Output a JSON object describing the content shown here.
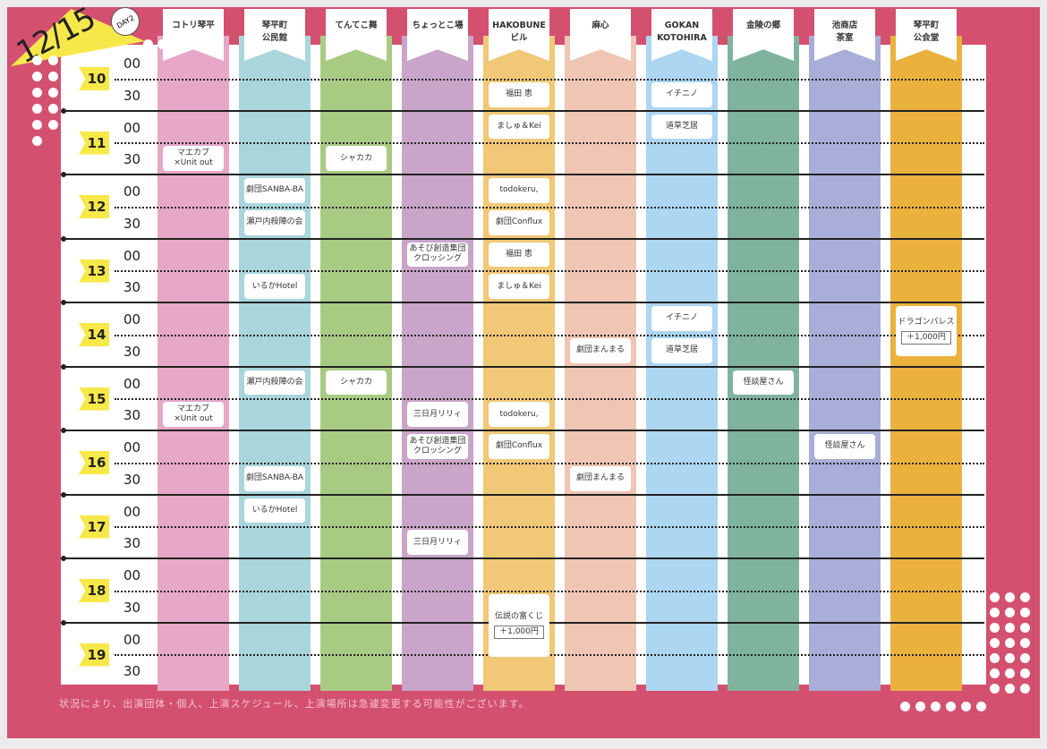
{
  "header": {
    "date": "12/15",
    "day": "DAY2"
  },
  "venues": [
    {
      "name": "コトリ琴平",
      "color": "#e6a8c6"
    },
    {
      "name": "琴平町\n公民館",
      "color": "#a9d5dc"
    },
    {
      "name": "てんてこ舞",
      "color": "#a8cb84"
    },
    {
      "name": "ちょっとこ場",
      "color": "#c9a5c9"
    },
    {
      "name": "HAKOBUNE\nビル",
      "color": "#f0c877"
    },
    {
      "name": "麻心",
      "color": "#efc5b3"
    },
    {
      "name": "GOKAN\nKOTOHIRA",
      "color": "#acd6f1"
    },
    {
      "name": "金陵の郷",
      "color": "#7fb39d"
    },
    {
      "name": "池商店\n茶室",
      "color": "#a8aed7"
    },
    {
      "name": "琴平町\n公会堂",
      "color": "#ebb13d"
    }
  ],
  "hours": [
    "10",
    "11",
    "12",
    "13",
    "14",
    "15",
    "16",
    "17",
    "18",
    "19"
  ],
  "minutes": [
    "00",
    "30"
  ],
  "events": [
    {
      "venue": 0,
      "time": "11:30",
      "title": "マエカブ\n×Unit out"
    },
    {
      "venue": 0,
      "time": "15:30",
      "title": "マエカブ\n×Unit out"
    },
    {
      "venue": 1,
      "time": "12:00",
      "title": "劇団SANBA-BA"
    },
    {
      "venue": 1,
      "time": "12:30",
      "title": "瀬戸内殺陣の会"
    },
    {
      "venue": 1,
      "time": "13:30",
      "title": "いるかHotel"
    },
    {
      "venue": 1,
      "time": "15:00",
      "title": "瀬戸内殺陣の会"
    },
    {
      "venue": 1,
      "time": "16:30",
      "title": "劇団SANBA-BA"
    },
    {
      "venue": 1,
      "time": "17:00",
      "title": "いるかHotel"
    },
    {
      "venue": 2,
      "time": "11:30",
      "title": "シャカカ"
    },
    {
      "venue": 2,
      "time": "15:00",
      "title": "シャカカ"
    },
    {
      "venue": 3,
      "time": "13:00",
      "title": "あそび創造集団\nクロッシング"
    },
    {
      "venue": 3,
      "time": "15:30",
      "title": "三日月リリィ"
    },
    {
      "venue": 3,
      "time": "16:00",
      "title": "あそび創造集団\nクロッシング"
    },
    {
      "venue": 3,
      "time": "17:30",
      "title": "三日月リリィ"
    },
    {
      "venue": 4,
      "time": "10:30",
      "title": "福田 恵"
    },
    {
      "venue": 4,
      "time": "11:00",
      "title": "ましゅ＆Kei"
    },
    {
      "venue": 4,
      "time": "12:00",
      "title": "todokeru,"
    },
    {
      "venue": 4,
      "time": "12:30",
      "title": "劇団Conflux"
    },
    {
      "venue": 4,
      "time": "13:00",
      "title": "福田 恵"
    },
    {
      "venue": 4,
      "time": "13:30",
      "title": "ましゅ＆Kei"
    },
    {
      "venue": 4,
      "time": "15:30",
      "title": "todokeru,"
    },
    {
      "venue": 4,
      "time": "16:00",
      "title": "劇団Conflux"
    },
    {
      "venue": 4,
      "time": "18:30",
      "slots": 2.2,
      "title": "伝説の富くじ",
      "price": "＋1,000円"
    },
    {
      "venue": 5,
      "time": "14:30",
      "title": "劇団まんまる"
    },
    {
      "venue": 5,
      "time": "16:30",
      "title": "劇団まんまる"
    },
    {
      "venue": 6,
      "time": "10:30",
      "title": "イチニノ"
    },
    {
      "venue": 6,
      "time": "11:00",
      "title": "道草芝居"
    },
    {
      "venue": 6,
      "time": "14:00",
      "title": "イチニノ"
    },
    {
      "venue": 6,
      "time": "14:30",
      "title": "道草芝居"
    },
    {
      "venue": 7,
      "time": "15:00",
      "title": "怪談屋さん"
    },
    {
      "venue": 8,
      "time": "16:00",
      "title": "怪談屋さん"
    },
    {
      "venue": 9,
      "time": "14:00",
      "slots": 1.8,
      "title": "ドラゴンパレス",
      "price": "＋1,000円"
    }
  ],
  "footer": {
    "note": "状況により、出演団体・個人、上演スケジュール、上演場所は急遽変更する可能性がございます。"
  }
}
